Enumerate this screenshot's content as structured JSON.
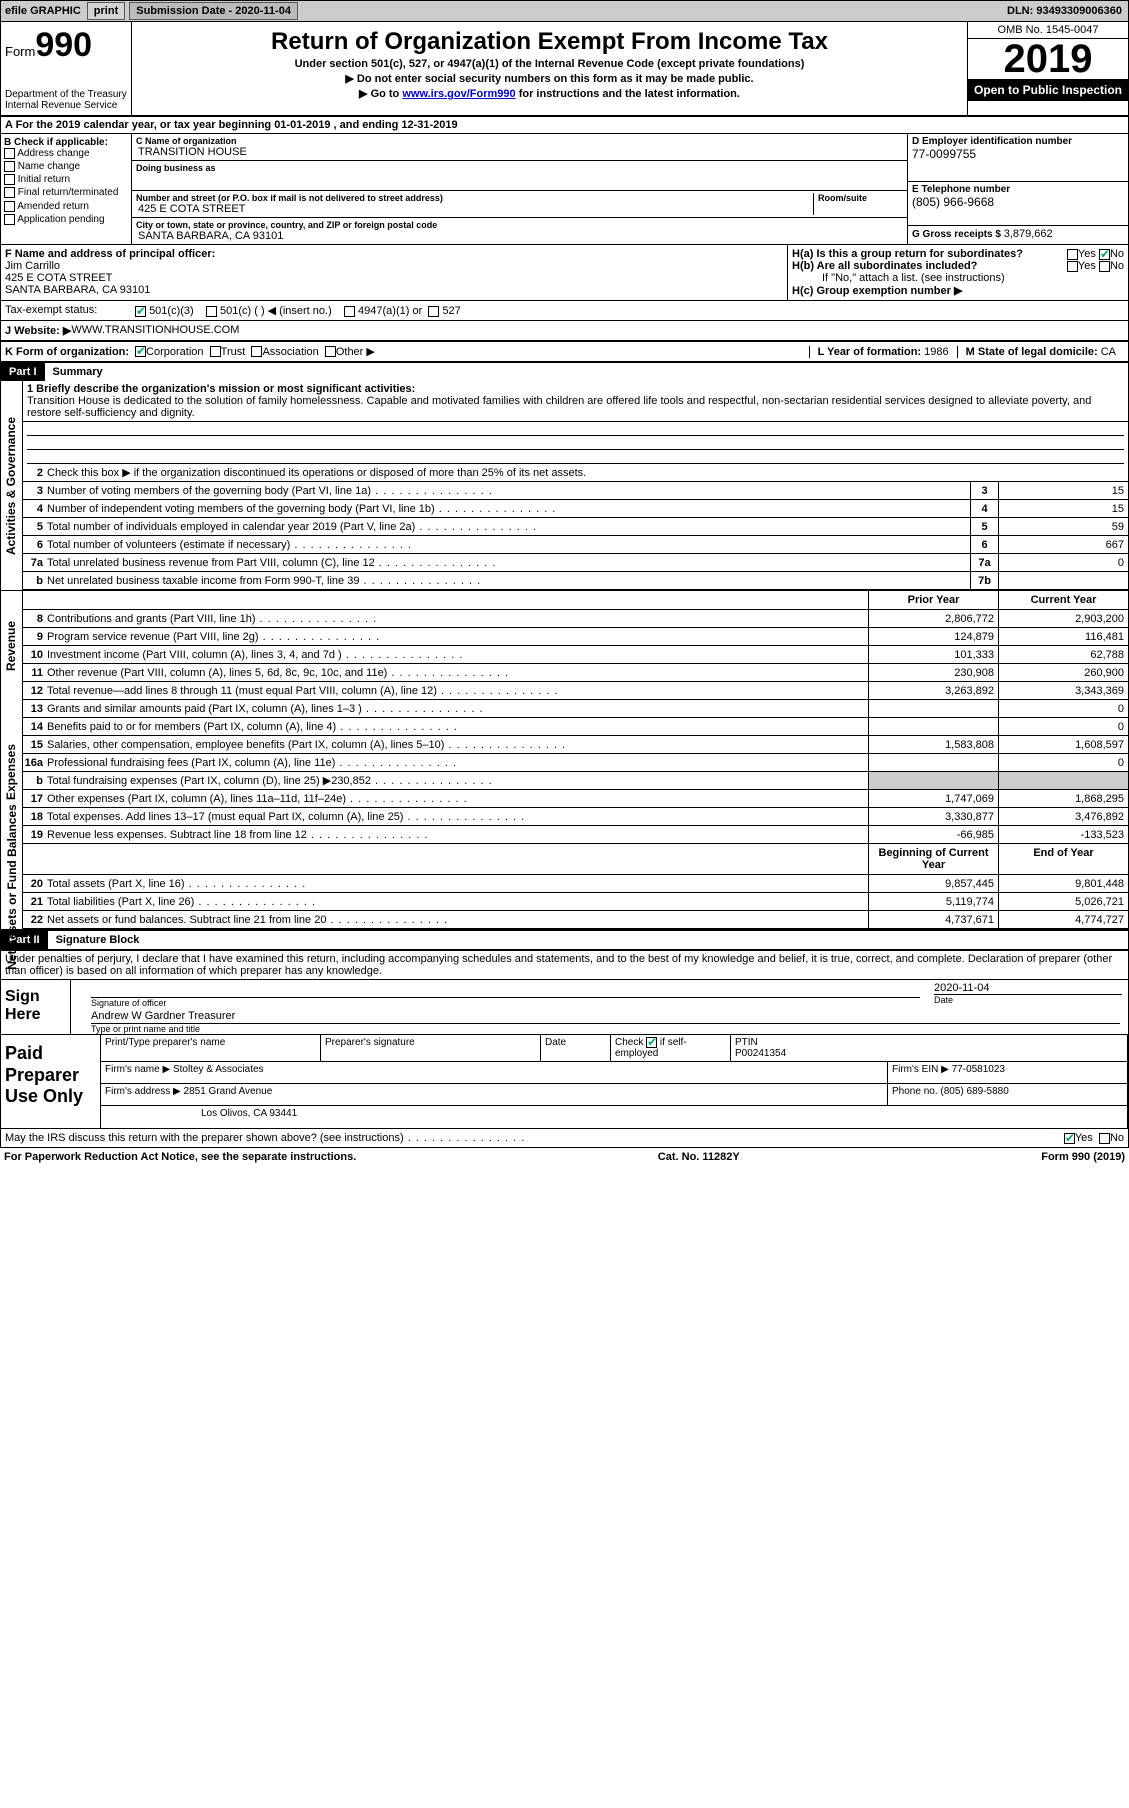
{
  "topbar": {
    "efile": "efile GRAPHIC",
    "print": "print",
    "subdate_label": "Submission Date - ",
    "subdate": "2020-11-04",
    "dln_label": "DLN: ",
    "dln": "93493309006360"
  },
  "header": {
    "form_label": "Form",
    "form_no": "990",
    "title": "Return of Organization Exempt From Income Tax",
    "sub1": "Under section 501(c), 527, or 4947(a)(1) of the Internal Revenue Code (except private foundations)",
    "sub2": "▶ Do not enter social security numbers on this form as it may be made public.",
    "sub3_pre": "▶ Go to ",
    "sub3_link": "www.irs.gov/Form990",
    "sub3_post": " for instructions and the latest information.",
    "dept": "Department of the Treasury\nInternal Revenue Service",
    "omb": "OMB No. 1545-0047",
    "year": "2019",
    "open": "Open to Public Inspection"
  },
  "rowA": "A  For the 2019 calendar year, or tax year beginning 01-01-2019   , and ending 12-31-2019",
  "colB": {
    "label": "B Check if applicable:",
    "items": [
      "Address change",
      "Name change",
      "Initial return",
      "Final return/terminated",
      "Amended return",
      "Application pending"
    ]
  },
  "colC": {
    "name_lbl": "C Name of organization",
    "name": "TRANSITION HOUSE",
    "dba_lbl": "Doing business as",
    "addr_lbl": "Number and street (or P.O. box if mail is not delivered to street address)",
    "room_lbl": "Room/suite",
    "addr": "425 E COTA STREET",
    "city_lbl": "City or town, state or province, country, and ZIP or foreign postal code",
    "city": "SANTA BARBARA, CA  93101"
  },
  "colD": {
    "ein_lbl": "D Employer identification number",
    "ein": "77-0099755",
    "tel_lbl": "E Telephone number",
    "tel": "(805) 966-9668",
    "gross_lbl": "G Gross receipts $ ",
    "gross": "3,879,662"
  },
  "officer": {
    "lbl": "F  Name and address of principal officer:",
    "name": "Jim Carrillo",
    "addr1": "425 E COTA STREET",
    "addr2": "SANTA BARBARA, CA  93101"
  },
  "H": {
    "a": "H(a)  Is this a group return for subordinates?",
    "a_yes": "Yes",
    "a_no_checked": true,
    "a_no": "No",
    "b": "H(b)  Are all subordinates included?",
    "b_yes": "Yes",
    "b_no": "No",
    "b_note": "If \"No,\" attach a list. (see instructions)",
    "c": "H(c)  Group exemption number ▶"
  },
  "taxStatus": {
    "lbl": "Tax-exempt status:",
    "c3": "501(c)(3)",
    "c": "501(c) (  ) ◀ (insert no.)",
    "a1": "4947(a)(1) or",
    "s527": "527"
  },
  "website": {
    "lbl": "J   Website: ▶ ",
    "val": "WWW.TRANSITIONHOUSE.COM"
  },
  "K": {
    "lbl": "K Form of organization:",
    "corp": "Corporation",
    "trust": "Trust",
    "assoc": "Association",
    "other": "Other ▶",
    "L_lbl": "L Year of formation: ",
    "L_val": "1986",
    "M_lbl": "M State of legal domicile: ",
    "M_val": "CA"
  },
  "part1": {
    "hdr": "Part I",
    "title": "Summary"
  },
  "mission": {
    "lbl": "1   Briefly describe the organization's mission or most significant activities:",
    "text": "Transition House is dedicated to the solution of family homelessness. Capable and motivated families with children are offered life tools and respectful, non-sectarian residential services designed to alleviate poverty, and restore self-sufficiency and dignity."
  },
  "lines": {
    "2": "Check this box ▶     if the organization discontinued its operations or disposed of more than 25% of its net assets.",
    "3": {
      "text": "Number of voting members of the governing body (Part VI, line 1a)",
      "box": "3",
      "val": "15"
    },
    "4": {
      "text": "Number of independent voting members of the governing body (Part VI, line 1b)",
      "box": "4",
      "val": "15"
    },
    "5": {
      "text": "Total number of individuals employed in calendar year 2019 (Part V, line 2a)",
      "box": "5",
      "val": "59"
    },
    "6": {
      "text": "Total number of volunteers (estimate if necessary)",
      "box": "6",
      "val": "667"
    },
    "7a": {
      "text": "Total unrelated business revenue from Part VIII, column (C), line 12",
      "box": "7a",
      "val": "0"
    },
    "7b": {
      "text": "Net unrelated business taxable income from Form 990-T, line 39",
      "box": "7b",
      "val": ""
    }
  },
  "colHeaders": {
    "prior": "Prior Year",
    "current": "Current Year"
  },
  "revenue": [
    {
      "n": "8",
      "t": "Contributions and grants (Part VIII, line 1h)",
      "p": "2,806,772",
      "c": "2,903,200"
    },
    {
      "n": "9",
      "t": "Program service revenue (Part VIII, line 2g)",
      "p": "124,879",
      "c": "116,481"
    },
    {
      "n": "10",
      "t": "Investment income (Part VIII, column (A), lines 3, 4, and 7d )",
      "p": "101,333",
      "c": "62,788"
    },
    {
      "n": "11",
      "t": "Other revenue (Part VIII, column (A), lines 5, 6d, 8c, 9c, 10c, and 11e)",
      "p": "230,908",
      "c": "260,900"
    },
    {
      "n": "12",
      "t": "Total revenue—add lines 8 through 11 (must equal Part VIII, column (A), line 12)",
      "p": "3,263,892",
      "c": "3,343,369"
    }
  ],
  "expenses": [
    {
      "n": "13",
      "t": "Grants and similar amounts paid (Part IX, column (A), lines 1–3 )",
      "p": "",
      "c": "0"
    },
    {
      "n": "14",
      "t": "Benefits paid to or for members (Part IX, column (A), line 4)",
      "p": "",
      "c": "0"
    },
    {
      "n": "15",
      "t": "Salaries, other compensation, employee benefits (Part IX, column (A), lines 5–10)",
      "p": "1,583,808",
      "c": "1,608,597"
    },
    {
      "n": "16a",
      "t": "Professional fundraising fees (Part IX, column (A), line 11e)",
      "p": "",
      "c": "0"
    },
    {
      "n": "b",
      "t": "Total fundraising expenses (Part IX, column (D), line 25) ▶230,852",
      "p": "SHADED",
      "c": "SHADED"
    },
    {
      "n": "17",
      "t": "Other expenses (Part IX, column (A), lines 11a–11d, 11f–24e)",
      "p": "1,747,069",
      "c": "1,868,295"
    },
    {
      "n": "18",
      "t": "Total expenses. Add lines 13–17 (must equal Part IX, column (A), line 25)",
      "p": "3,330,877",
      "c": "3,476,892"
    },
    {
      "n": "19",
      "t": "Revenue less expenses. Subtract line 18 from line 12",
      "p": "-66,985",
      "c": "-133,523"
    }
  ],
  "balanceHeaders": {
    "begin": "Beginning of Current Year",
    "end": "End of Year"
  },
  "balances": [
    {
      "n": "20",
      "t": "Total assets (Part X, line 16)",
      "p": "9,857,445",
      "c": "9,801,448"
    },
    {
      "n": "21",
      "t": "Total liabilities (Part X, line 26)",
      "p": "5,119,774",
      "c": "5,026,721"
    },
    {
      "n": "22",
      "t": "Net assets or fund balances. Subtract line 21 from line 20",
      "p": "4,737,671",
      "c": "4,774,727"
    }
  ],
  "sideLabels": {
    "gov": "Activities & Governance",
    "rev": "Revenue",
    "exp": "Expenses",
    "bal": "Net Assets or Fund Balances"
  },
  "part2": {
    "hdr": "Part II",
    "title": "Signature Block",
    "decl": "Under penalties of perjury, I declare that I have examined this return, including accompanying schedules and statements, and to the best of my knowledge and belief, it is true, correct, and complete. Declaration of preparer (other than officer) is based on all information of which preparer has any knowledge."
  },
  "sign": {
    "here": "Sign Here",
    "sig_lbl": "Signature of officer",
    "date_lbl": "Date",
    "date": "2020-11-04",
    "name": "Andrew W Gardner  Treasurer",
    "name_lbl": "Type or print name and title"
  },
  "prep": {
    "title": "Paid Preparer Use Only",
    "r1": {
      "c1": "Print/Type preparer's name",
      "c2": "Preparer's signature",
      "c3": "Date",
      "c4_lbl": "Check",
      "c4_txt": "if self-employed",
      "c5_lbl": "PTIN",
      "c5": "P00241354"
    },
    "r2": {
      "lbl": "Firm's name    ▶",
      "val": "Stoltey & Associates",
      "ein_lbl": "Firm's EIN ▶",
      "ein": "77-0581023"
    },
    "r3": {
      "lbl": "Firm's address ▶",
      "val": "2851 Grand Avenue",
      "phone_lbl": "Phone no.",
      "phone": "(805) 689-5880"
    },
    "r4": {
      "val": "Los Olivos, CA  93441"
    }
  },
  "footer": {
    "discuss": "May the IRS discuss this return with the preparer shown above? (see instructions)",
    "yes": "Yes",
    "no": "No",
    "pra": "For Paperwork Reduction Act Notice, see the separate instructions.",
    "cat": "Cat. No. 11282Y",
    "form": "Form 990 (2019)"
  },
  "colors": {
    "accent": "#0a6",
    "bg_header": "#000",
    "bg_shade": "#ccc"
  }
}
